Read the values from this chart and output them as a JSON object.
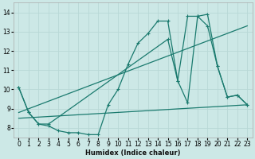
{
  "xlabel": "Humidex (Indice chaleur)",
  "ylabel": "",
  "background_color": "#cce8e6",
  "grid_color": "#b8d8d6",
  "line_color": "#1a7a6e",
  "xlim": [
    -0.5,
    23.5
  ],
  "ylim": [
    7.5,
    14.5
  ],
  "xticks": [
    0,
    1,
    2,
    3,
    4,
    5,
    6,
    7,
    8,
    9,
    10,
    11,
    12,
    13,
    14,
    15,
    16,
    17,
    18,
    19,
    20,
    21,
    22,
    23
  ],
  "yticks": [
    8,
    9,
    10,
    11,
    12,
    13,
    14
  ],
  "series": [
    {
      "x": [
        0,
        1,
        2,
        3,
        4,
        5,
        6,
        7,
        8,
        9,
        10,
        11,
        12,
        13,
        14,
        15,
        16,
        17,
        18,
        19,
        20,
        21,
        22,
        23
      ],
      "y": [
        10.1,
        8.8,
        8.2,
        8.1,
        7.85,
        7.75,
        7.75,
        7.65,
        7.65,
        9.2,
        10.0,
        11.3,
        12.4,
        12.9,
        13.55,
        13.55,
        10.45,
        9.3,
        13.8,
        13.9,
        11.2,
        9.6,
        9.7,
        9.2
      ]
    },
    {
      "x": [
        0,
        1,
        2,
        3,
        15,
        16,
        17,
        18,
        19,
        20,
        21,
        22,
        23
      ],
      "y": [
        10.1,
        8.8,
        8.2,
        8.2,
        12.6,
        10.45,
        13.8,
        13.8,
        13.3,
        11.2,
        9.6,
        9.7,
        9.2
      ]
    },
    {
      "x": [
        0,
        23
      ],
      "y": [
        8.5,
        9.2
      ]
    },
    {
      "x": [
        0,
        23
      ],
      "y": [
        8.8,
        13.3
      ]
    }
  ]
}
